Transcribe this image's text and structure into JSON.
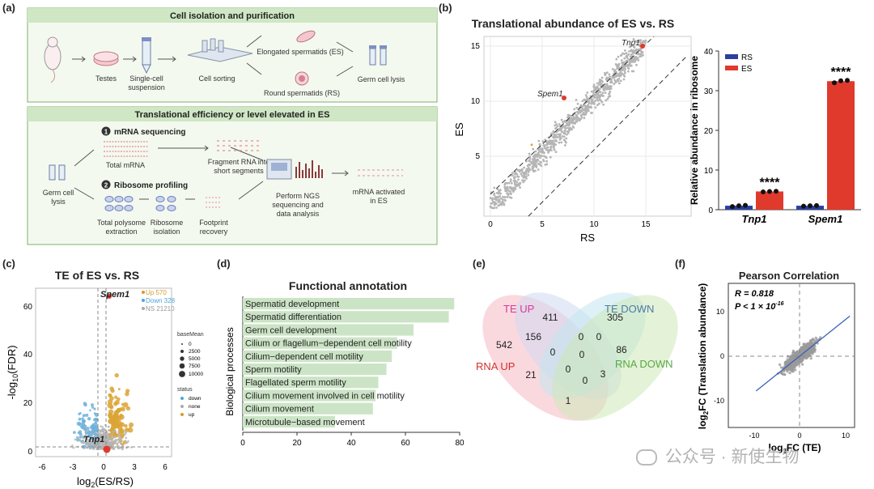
{
  "panel_labels": {
    "a": "(a)",
    "b": "(b)",
    "c": "(c)",
    "d": "(d)",
    "e": "(e)",
    "f": "(f)"
  },
  "panel_a": {
    "section1_title": "Cell isolation and purification",
    "section2_title": "Translational efficiency or level elevated in ES",
    "step_testes": "Testes",
    "step_single_cell_1": "Single-cell",
    "step_single_cell_2": "suspension",
    "step_sorting": "Cell sorting",
    "step_es": "Elongated spermatids (ES)",
    "step_rs": "Round spermatids (RS)",
    "step_lysis": "Germ cell lysis",
    "germ_cell_1": "Germ cell",
    "germ_cell_2": "lysis",
    "seq_num": "1",
    "seq_title": "mRNA sequencing",
    "total_mrna": "Total mRNA",
    "fragment_1": "Fragment RNA into",
    "fragment_2": "short segments",
    "ribo_num": "2",
    "ribo_title": "Ribosome profiling",
    "polysome_1": "Total polysome",
    "polysome_2": "extraction",
    "ribo_iso_1": "Ribosome",
    "ribo_iso_2": "isolation",
    "footprint_1": "Footprint",
    "footprint_2": "recovery",
    "ngs_1": "Perform NGS",
    "ngs_2": "sequencing and",
    "ngs_3": "data analysis",
    "activated_1": "mRNA activated",
    "activated_2": "in ES"
  },
  "panel_b": {
    "title": "Translational abundance of ES vs. RS",
    "scatter": {
      "xlabel": "RS",
      "ylabel": "ES",
      "xticks": [
        "0",
        "5",
        "10",
        "15"
      ],
      "yticks": [
        "5",
        "10",
        "15"
      ],
      "label_tnp1": "Tnp1",
      "label_spem1": "Spem1"
    }
  },
  "panel_c": {
    "title": "TE of ES vs. RS",
    "ylabel_pre": "-log",
    "ylabel_sub": "10",
    "ylabel_post": "(FDR)",
    "xlabel_pre": "log",
    "xlabel_sub": "2",
    "xlabel_post": "(ES/RS)",
    "xticks": [
      "-6",
      "-3",
      "0",
      "3",
      "6"
    ],
    "yticks": [
      "0",
      "20",
      "40",
      "60"
    ],
    "label_spem1": "Spem1",
    "label_tnp1": "Tnp1",
    "legend_up": "Up 570",
    "legend_down": "Down 328",
    "legend_ns": "NS 21210",
    "basemean_title": "baseMean",
    "basemean_values": [
      "0",
      "2500",
      "5000",
      "7500",
      "10000"
    ],
    "status_title": "status",
    "status_values": [
      "down",
      "none",
      "up"
    ]
  },
  "panel_d": {
    "title": "Functional annotation",
    "ylabel": "Biological processes",
    "xticks": [
      "0",
      "20",
      "40",
      "60",
      "80"
    ]
  },
  "panel_e": {
    "labels": {
      "te_up": "TE UP",
      "te_down": "TE DOWN",
      "rna_up": "RNA UP",
      "rna_down": "RNA DOWN"
    },
    "counts": {
      "c411": "411",
      "c305": "305",
      "c542": "542",
      "c86": "86",
      "c156": "156",
      "c0a": "0",
      "c0b": "0",
      "c0c": "0",
      "c0d": "0",
      "c0e": "0",
      "c0f": "0",
      "c21": "21",
      "c3": "3",
      "c1": "1"
    }
  },
  "panel_f": {
    "title": "Pearson Correlation",
    "r_text": "R = 0.818",
    "p_text": "P < 1 × 10",
    "p_exp": "-16",
    "ylabel_pre": "log",
    "ylabel_sub": "2",
    "ylabel_post": "FC (Translation abundance)",
    "xlabel_pre": "log",
    "xlabel_sub": "2",
    "xlabel_post": "FC (TE)",
    "xticks": [
      "-10",
      "0",
      "10"
    ],
    "yticks": [
      "10",
      "0",
      "-10"
    ]
  },
  "watermark": "公众号 · 新使生物",
  "chart_data": [
    {
      "type": "bar",
      "id": "b-bar",
      "categories": [
        "Tnp1",
        "Spem1"
      ],
      "series": [
        {
          "name": "RS",
          "color": "#2b3fa0",
          "values": [
            1.0,
            1.0
          ],
          "points": [
            [
              0.8,
              1.0,
              1.1
            ],
            [
              0.9,
              1.0,
              1.05
            ]
          ]
        },
        {
          "name": "ES",
          "color": "#e03a2c",
          "values": [
            4.6,
            32.4
          ],
          "points": [
            [
              4.5,
              4.6,
              4.65
            ],
            [
              32.0,
              32.5,
              32.6
            ]
          ]
        }
      ],
      "significance": [
        "****",
        "****"
      ],
      "ylabel": "Relative abundance in ribosome",
      "ylim": [
        0,
        40
      ],
      "yticks": [
        0,
        10,
        20,
        30,
        40
      ],
      "legend_position": "top-left"
    },
    {
      "type": "bar",
      "id": "d-bar",
      "orientation": "horizontal",
      "title": "Functional annotation",
      "ylabel": "Biological processes",
      "categories": [
        "Spermatid development",
        "Spermatid differentiation",
        "Germ cell development",
        "Cilium or flagellum−dependent cell motility",
        "Cilium−dependent cell motility",
        "Sperm motility",
        "Flagellated sperm motility",
        "Cilium movement involved in cell motility",
        "Cilium movement",
        "Microtubule−based movement"
      ],
      "values": [
        78,
        76,
        63,
        57,
        55,
        53,
        50,
        49,
        48,
        34
      ],
      "xlim": [
        0,
        80
      ],
      "color": "#cce4c6"
    },
    {
      "type": "scatter",
      "id": "f-scatter",
      "title": "Pearson Correlation",
      "xlabel": "log2FC (TE)",
      "ylabel": "log2FC (Translation abundance)",
      "xlim": [
        -15,
        16
      ],
      "ylim": [
        -16,
        16
      ],
      "fit": {
        "slope": 0.82,
        "intercept": 0
      },
      "r": 0.818
    }
  ]
}
